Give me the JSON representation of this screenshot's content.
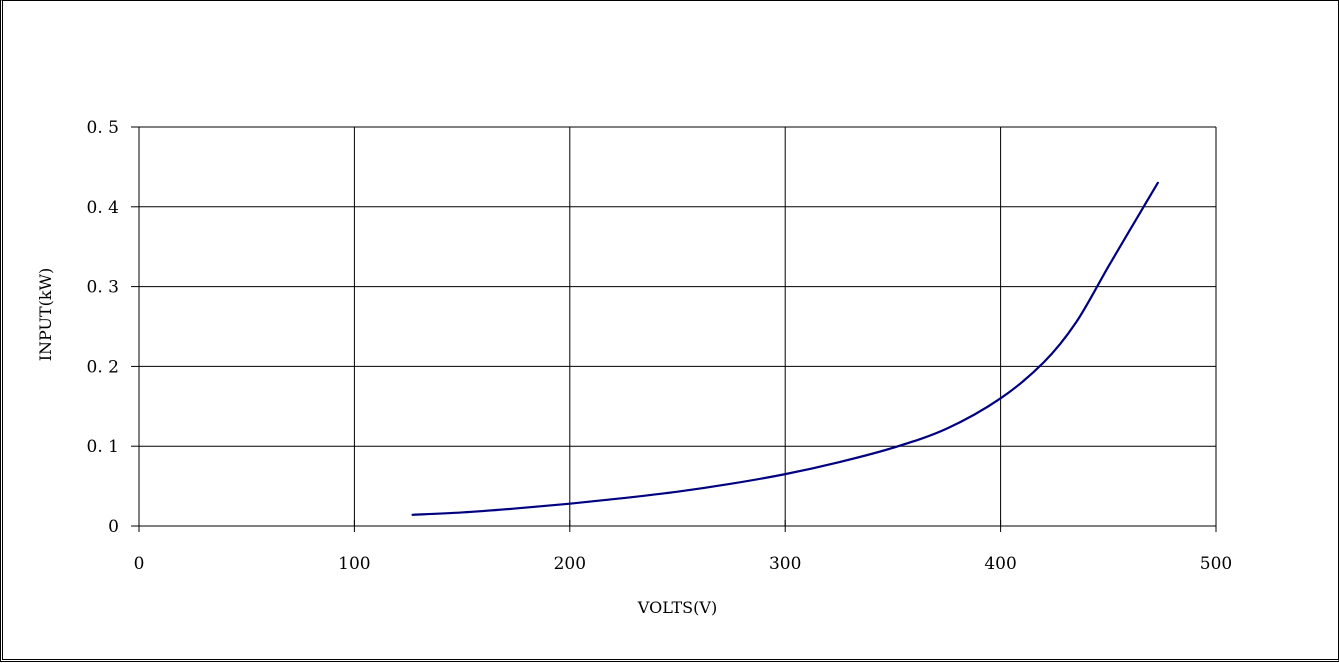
{
  "chart_data": {
    "type": "line",
    "title": "",
    "xlabel": "VOLTS(V)",
    "ylabel": "INPUT(kW)",
    "xlim": [
      0,
      500
    ],
    "ylim": [
      0,
      0.5
    ],
    "x_ticks": [
      0,
      100,
      200,
      300,
      400,
      500
    ],
    "y_ticks": [
      0,
      0.1,
      0.2,
      0.3,
      0.4,
      0.5
    ],
    "x_tick_labels": [
      "0",
      "100",
      "200",
      "300",
      "400",
      "500"
    ],
    "y_tick_labels": [
      "0",
      "0. 1",
      "0. 2",
      "0. 3",
      "0. 4",
      "0. 5"
    ],
    "grid": true,
    "legend": "none",
    "series": [
      {
        "color": "#000080",
        "x": [
          127,
          150,
          175,
          200,
          225,
          250,
          275,
          300,
          325,
          350,
          375,
          400,
          420,
          435,
          450,
          462,
          473
        ],
        "y": [
          0.014,
          0.017,
          0.022,
          0.028,
          0.035,
          0.043,
          0.053,
          0.065,
          0.08,
          0.098,
          0.122,
          0.16,
          0.205,
          0.255,
          0.325,
          0.38,
          0.43
        ]
      }
    ]
  }
}
